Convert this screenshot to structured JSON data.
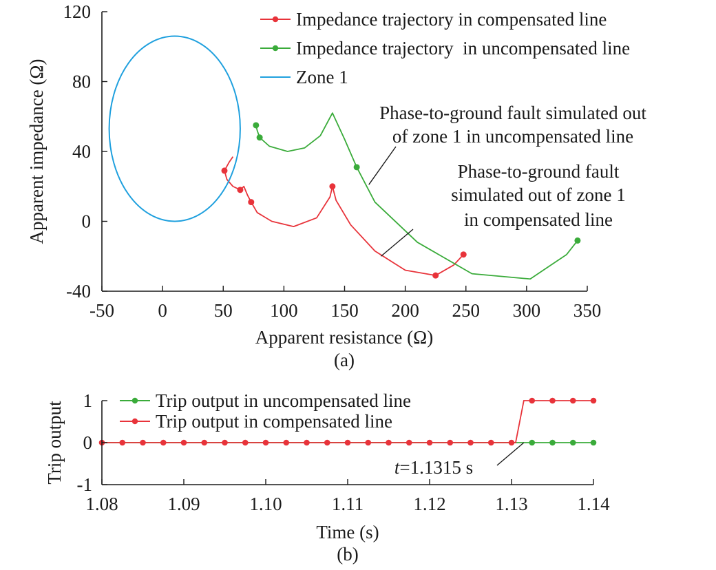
{
  "chart_data": [
    {
      "type": "line",
      "panel_label": "(a)",
      "xlabel": "Apparent resistance (Ω)",
      "ylabel": "Apparent impedance (Ω)",
      "xlim": [
        -50,
        350
      ],
      "ylim": [
        -40,
        120
      ],
      "xticks": [
        -50,
        0,
        50,
        100,
        150,
        200,
        250,
        300,
        350
      ],
      "yticks": [
        -40,
        0,
        40,
        80,
        120
      ],
      "grid": false,
      "legend_position": "top-right",
      "series": [
        {
          "name": "Impedance trajectory in compensated line",
          "color": "#e8333a",
          "x": [
            58,
            55,
            51,
            53,
            58,
            64,
            67,
            70,
            73,
            78,
            90,
            108,
            127,
            138,
            140,
            143,
            155,
            175,
            200,
            225,
            240,
            248
          ],
          "y": [
            37,
            34,
            29,
            24,
            20,
            18,
            20,
            15,
            11,
            5,
            0,
            -3,
            2,
            14,
            20,
            12,
            -2,
            -17,
            -28,
            -31,
            -25,
            -19
          ],
          "markers_x": [
            51,
            64,
            73,
            140,
            225,
            248
          ],
          "markers_y": [
            29,
            18,
            11,
            20,
            -31,
            -19
          ]
        },
        {
          "name": "Impedance trajectory  in uncompensated line",
          "color": "#3aab3a",
          "x": [
            77,
            78,
            80,
            88,
            103,
            117,
            130,
            140,
            150,
            160,
            175,
            210,
            255,
            303,
            333,
            342
          ],
          "y": [
            55,
            52,
            48,
            43,
            40,
            42,
            49,
            62,
            47,
            31,
            11,
            -12,
            -30,
            -33,
            -19,
            -11
          ],
          "markers_x": [
            77,
            80,
            160,
            342
          ],
          "markers_y": [
            55,
            48,
            31,
            -11
          ]
        },
        {
          "name": "Zone 1",
          "color": "#1fa0de",
          "circle": {
            "center_x": 10,
            "center_y": 53,
            "radius_x": 54,
            "radius_y": 53
          }
        }
      ],
      "annotations": [
        {
          "lines": [
            "Phase-to-ground fault simulated out",
            "of zone 1 in uncompensated line"
          ],
          "point_x": 170,
          "point_y": 21
        },
        {
          "lines": [
            "Phase-to-ground fault",
            "simulated out of zone 1",
            "in compensated line"
          ],
          "point_x": 180,
          "point_y": -20
        }
      ]
    },
    {
      "type": "line",
      "panel_label": "(b)",
      "xlabel": "Time (s)",
      "ylabel": "Trip output",
      "xlim": [
        1.08,
        1.14
      ],
      "ylim": [
        -1,
        1
      ],
      "xticks": [
        "1.08",
        "1.09",
        "1.10",
        "1.11",
        "1.12",
        "1.13",
        "1.14"
      ],
      "yticks": [
        -1,
        0,
        1
      ],
      "grid": false,
      "legend_position": "top-left",
      "series": [
        {
          "name": "Trip output in uncompensated line",
          "color": "#3aab3a",
          "x": [
            1.08,
            1.14
          ],
          "y": [
            0,
            0
          ],
          "markers_x": [
            1.1325,
            1.135,
            1.1375,
            1.14
          ],
          "markers_y": [
            0,
            0,
            0,
            0
          ]
        },
        {
          "name": "Trip output in compensated line",
          "color": "#e8333a",
          "x": [
            1.08,
            1.1305,
            1.1315,
            1.14
          ],
          "y": [
            0,
            0,
            1,
            1
          ],
          "markers_x": [
            1.08,
            1.0825,
            1.085,
            1.0875,
            1.09,
            1.0925,
            1.095,
            1.0975,
            1.1,
            1.1025,
            1.105,
            1.1075,
            1.11,
            1.1125,
            1.115,
            1.1175,
            1.12,
            1.1225,
            1.125,
            1.1275,
            1.13,
            1.1325,
            1.135,
            1.1375,
            1.14
          ],
          "markers_y": [
            0,
            0,
            0,
            0,
            0,
            0,
            0,
            0,
            0,
            0,
            0,
            0,
            0,
            0,
            0,
            0,
            0,
            0,
            0,
            0,
            0,
            1,
            1,
            1,
            1
          ]
        }
      ],
      "annotations": [
        {
          "label_italic": "t",
          "label_rest": "=1.1315 s",
          "point_x": 1.1315,
          "point_y": 0
        }
      ]
    }
  ]
}
